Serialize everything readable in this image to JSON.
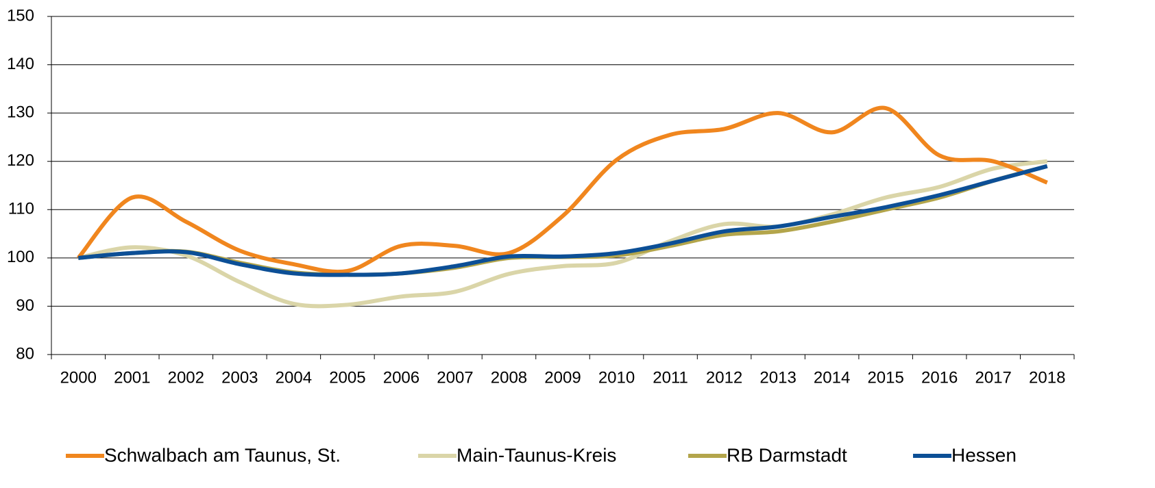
{
  "chart_data": {
    "type": "line",
    "categories": [
      "2000",
      "2001",
      "2002",
      "2003",
      "2004",
      "2005",
      "2006",
      "2007",
      "2008",
      "2009",
      "2010",
      "2011",
      "2012",
      "2013",
      "2014",
      "2015",
      "2016",
      "2017",
      "2018"
    ],
    "series": [
      {
        "name": "Schwalbach am Taunus, St.",
        "color": "#f0861e",
        "values": [
          100,
          112.5,
          107.5,
          101.5,
          98.7,
          97.3,
          102.5,
          102.5,
          101,
          108.7,
          120.3,
          125.5,
          126.7,
          130,
          126,
          131,
          121.2,
          120,
          115.6
        ]
      },
      {
        "name": "Main-Taunus-Kreis",
        "color": "#dad5a8",
        "values": [
          100,
          102.2,
          100.5,
          95,
          90.5,
          90.3,
          92,
          93,
          96.7,
          98.3,
          99,
          103.5,
          107,
          106.5,
          109,
          112.5,
          114.7,
          118.5,
          120
        ]
      },
      {
        "name": "RB Darmstadt",
        "color": "#b3a54b",
        "values": [
          100,
          101,
          101.3,
          99,
          97,
          96.5,
          96.8,
          98,
          100,
          100.2,
          100.5,
          102.5,
          104.8,
          105.5,
          107.5,
          110,
          112.5,
          116,
          119
        ]
      },
      {
        "name": "Hessen",
        "color": "#0c4f96",
        "values": [
          100,
          101,
          101.2,
          98.7,
          96.8,
          96.5,
          96.8,
          98.3,
          100.3,
          100.3,
          101,
          103,
          105.5,
          106.5,
          108.5,
          110.5,
          113,
          116,
          119
        ]
      }
    ],
    "ylim": [
      80,
      150
    ],
    "yticks": [
      80,
      90,
      100,
      110,
      120,
      130,
      140,
      150
    ],
    "grid": true
  }
}
